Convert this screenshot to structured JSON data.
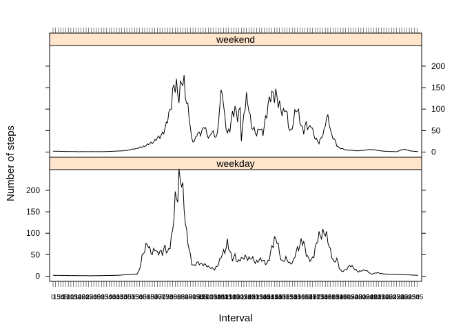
{
  "chart_data": {
    "type": "line",
    "xlabel": "Interval",
    "ylabel": "Number of steps",
    "yticks": [
      0,
      50,
      100,
      150,
      200
    ],
    "ylim": [
      -12,
      248
    ],
    "n_intervals": 288,
    "strip_color": "#ffe5cc",
    "line_color": "#000000",
    "panels": [
      {
        "name": "weekend",
        "strip_label": "weekend",
        "ytick_side": "right",
        "keypoints": [
          [
            0,
            2
          ],
          [
            20,
            1
          ],
          [
            40,
            1
          ],
          [
            55,
            3
          ],
          [
            60,
            5
          ],
          [
            65,
            8
          ],
          [
            70,
            12
          ],
          [
            75,
            18
          ],
          [
            80,
            26
          ],
          [
            85,
            40
          ],
          [
            88,
            50
          ],
          [
            90,
            80
          ],
          [
            93,
            110
          ],
          [
            95,
            150
          ],
          [
            97,
            160
          ],
          [
            99,
            125
          ],
          [
            101,
            160
          ],
          [
            103,
            165
          ],
          [
            105,
            120
          ],
          [
            107,
            80
          ],
          [
            109,
            30
          ],
          [
            111,
            25
          ],
          [
            113,
            40
          ],
          [
            116,
            45
          ],
          [
            119,
            60
          ],
          [
            121,
            40
          ],
          [
            123,
            35
          ],
          [
            125,
            50
          ],
          [
            127,
            35
          ],
          [
            129,
            40
          ],
          [
            131,
            110
          ],
          [
            133,
            140
          ],
          [
            135,
            80
          ],
          [
            137,
            45
          ],
          [
            139,
            50
          ],
          [
            141,
            90
          ],
          [
            143,
            105
          ],
          [
            145,
            75
          ],
          [
            147,
            100
          ],
          [
            148,
            30
          ],
          [
            150,
            90
          ],
          [
            152,
            120
          ],
          [
            154,
            105
          ],
          [
            156,
            60
          ],
          [
            158,
            50
          ],
          [
            160,
            40
          ],
          [
            162,
            60
          ],
          [
            165,
            40
          ],
          [
            167,
            80
          ],
          [
            169,
            110
          ],
          [
            171,
            125
          ],
          [
            173,
            135
          ],
          [
            175,
            140
          ],
          [
            177,
            110
          ],
          [
            179,
            100
          ],
          [
            181,
            95
          ],
          [
            183,
            100
          ],
          [
            185,
            60
          ],
          [
            187,
            50
          ],
          [
            189,
            70
          ],
          [
            191,
            100
          ],
          [
            193,
            95
          ],
          [
            195,
            60
          ],
          [
            197,
            45
          ],
          [
            199,
            70
          ],
          [
            201,
            55
          ],
          [
            203,
            60
          ],
          [
            205,
            40
          ],
          [
            207,
            30
          ],
          [
            209,
            20
          ],
          [
            211,
            35
          ],
          [
            213,
            50
          ],
          [
            215,
            80
          ],
          [
            217,
            70
          ],
          [
            219,
            40
          ],
          [
            221,
            30
          ],
          [
            223,
            15
          ],
          [
            225,
            10
          ],
          [
            230,
            5
          ],
          [
            240,
            3
          ],
          [
            250,
            6
          ],
          [
            260,
            2
          ],
          [
            270,
            1
          ],
          [
            276,
            7
          ],
          [
            280,
            3
          ],
          [
            287,
            1
          ]
        ]
      },
      {
        "name": "weekday",
        "strip_label": "weekday",
        "ytick_side": "left",
        "keypoints": [
          [
            0,
            2
          ],
          [
            30,
            1
          ],
          [
            50,
            2
          ],
          [
            60,
            4
          ],
          [
            66,
            5
          ],
          [
            68,
            15
          ],
          [
            70,
            45
          ],
          [
            72,
            65
          ],
          [
            74,
            75
          ],
          [
            76,
            60
          ],
          [
            78,
            55
          ],
          [
            80,
            65
          ],
          [
            82,
            50
          ],
          [
            84,
            60
          ],
          [
            86,
            55
          ],
          [
            88,
            65
          ],
          [
            90,
            55
          ],
          [
            92,
            75
          ],
          [
            94,
            100
          ],
          [
            96,
            180
          ],
          [
            98,
            200
          ],
          [
            99,
            225
          ],
          [
            101,
            215
          ],
          [
            103,
            170
          ],
          [
            105,
            100
          ],
          [
            107,
            60
          ],
          [
            109,
            30
          ],
          [
            111,
            25
          ],
          [
            113,
            30
          ],
          [
            116,
            30
          ],
          [
            120,
            25
          ],
          [
            124,
            20
          ],
          [
            127,
            15
          ],
          [
            130,
            30
          ],
          [
            133,
            50
          ],
          [
            135,
            60
          ],
          [
            137,
            80
          ],
          [
            139,
            55
          ],
          [
            141,
            40
          ],
          [
            143,
            50
          ],
          [
            145,
            30
          ],
          [
            147,
            40
          ],
          [
            150,
            45
          ],
          [
            153,
            40
          ],
          [
            156,
            45
          ],
          [
            159,
            30
          ],
          [
            162,
            40
          ],
          [
            165,
            35
          ],
          [
            168,
            30
          ],
          [
            170,
            40
          ],
          [
            172,
            65
          ],
          [
            174,
            90
          ],
          [
            176,
            85
          ],
          [
            178,
            50
          ],
          [
            180,
            35
          ],
          [
            183,
            40
          ],
          [
            186,
            30
          ],
          [
            189,
            35
          ],
          [
            191,
            55
          ],
          [
            193,
            70
          ],
          [
            195,
            80
          ],
          [
            197,
            75
          ],
          [
            199,
            55
          ],
          [
            201,
            40
          ],
          [
            203,
            35
          ],
          [
            205,
            50
          ],
          [
            207,
            80
          ],
          [
            209,
            90
          ],
          [
            211,
            95
          ],
          [
            213,
            110
          ],
          [
            215,
            90
          ],
          [
            217,
            70
          ],
          [
            219,
            50
          ],
          [
            221,
            30
          ],
          [
            223,
            40
          ],
          [
            225,
            20
          ],
          [
            227,
            10
          ],
          [
            230,
            15
          ],
          [
            233,
            25
          ],
          [
            236,
            20
          ],
          [
            240,
            10
          ],
          [
            245,
            15
          ],
          [
            250,
            5
          ],
          [
            255,
            8
          ],
          [
            260,
            5
          ],
          [
            270,
            4
          ],
          [
            280,
            3
          ],
          [
            287,
            2
          ]
        ]
      }
    ]
  }
}
